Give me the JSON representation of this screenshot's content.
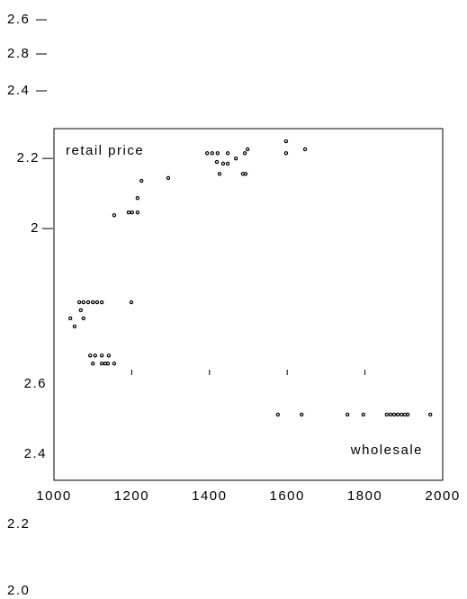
{
  "chart_data": [
    {
      "type": "scatter",
      "color": "#000000",
      "series": [
        {
          "name": "retail price",
          "color": "#000000",
          "x": [
            1093,
            1106,
            1123,
            1141,
            1100,
            1123,
            1132,
            1139,
            1155,
            1065,
            1076,
            1088,
            1100,
            1111,
            1123,
            1199,
            1069,
            1076,
            1042,
            1053,
            1155,
            1192,
            1201,
            1215,
            1215,
            1225,
            1294,
            1394,
            1407,
            1421,
            1447,
            1419,
            1435,
            1447,
            1468,
            1426,
            1486,
            1493,
            1491,
            1498,
            1597,
            1597,
            1646
          ],
          "values": [
            1.638,
            1.638,
            1.638,
            1.638,
            1.615,
            1.615,
            1.615,
            1.615,
            1.615,
            1.79,
            1.79,
            1.79,
            1.79,
            1.79,
            1.79,
            1.79,
            1.767,
            1.744,
            1.744,
            1.721,
            2.038,
            2.046,
            2.046,
            2.046,
            2.087,
            2.136,
            2.144,
            2.215,
            2.215,
            2.215,
            2.215,
            2.19,
            2.185,
            2.185,
            2.2,
            2.156,
            2.156,
            2.156,
            2.215,
            2.226,
            2.249,
            2.215,
            2.226
          ]
        }
      ],
      "xlim": [
        1000,
        2000
      ],
      "ylim": [
        1.59,
        2.285
      ],
      "yticks": [
        2.0,
        2.2
      ],
      "ytick_marks": true
    },
    {
      "type": "scatter",
      "color": "#000000",
      "series": [
        {
          "name": "wholesale",
          "color": "#000000",
          "x": [
            1576,
            1637,
            1755,
            1796,
            1856,
            1866,
            1875,
            1884,
            1894,
            1903,
            1910,
            1968
          ],
          "values": [
            2.513,
            2.513,
            2.513,
            2.513,
            2.513,
            2.513,
            2.513,
            2.513,
            2.513,
            2.513,
            2.513,
            2.513
          ]
        }
      ],
      "xlim": [
        1000,
        2000
      ],
      "xticks": [
        1000,
        1200,
        1400,
        1600,
        1800,
        2000
      ],
      "ylim": [
        2.326,
        2.633
      ],
      "yticks": [
        2.4,
        2.6
      ],
      "ytick_marks": false
    }
  ],
  "stray_labels": [
    "2.6",
    "2.8",
    "2.4",
    "2.2",
    "2.0"
  ]
}
